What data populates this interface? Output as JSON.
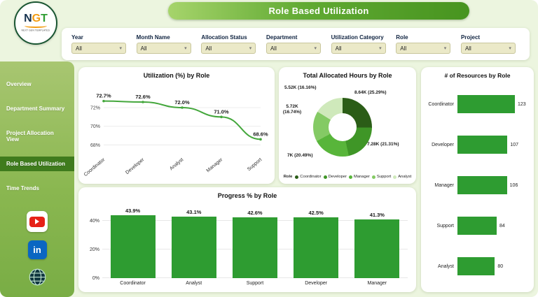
{
  "logo": {
    "letters": [
      "N",
      "G",
      "T"
    ],
    "subtext": "NEXT GEN TEMPLATES"
  },
  "header": {
    "title": "Role Based Utilization"
  },
  "icons": {
    "linkedin_text": "in"
  },
  "filters": {
    "items": [
      {
        "label": "Year",
        "value": "All"
      },
      {
        "label": "Month Name",
        "value": "All"
      },
      {
        "label": "Allocation Status",
        "value": "All"
      },
      {
        "label": "Department",
        "value": "All"
      },
      {
        "label": "Utilization Category",
        "value": "All"
      },
      {
        "label": "Role",
        "value": "All"
      },
      {
        "label": "Project",
        "value": "All"
      }
    ]
  },
  "sidebar": {
    "items": [
      {
        "label": "Overview",
        "active": false
      },
      {
        "label": "Department Summary",
        "active": false
      },
      {
        "label": "Project Allocation View",
        "active": false
      },
      {
        "label": "Role Based Utilization",
        "active": true
      },
      {
        "label": "Time Trends",
        "active": false
      }
    ],
    "social": [
      "youtube",
      "linkedin",
      "website"
    ]
  },
  "colors": {
    "bar_green": "#2e9c31",
    "line_green": "#44a73c",
    "sidebar_active": "#3f7b1d",
    "banner_green": "#61aa33"
  },
  "chart_data": [
    {
      "type": "line",
      "title": "Utilization (%) by Role",
      "categories": [
        "Coordinator",
        "Developer",
        "Analyst",
        "Manager",
        "Support"
      ],
      "values": [
        72.7,
        72.6,
        72.0,
        71.0,
        68.6
      ],
      "labels": [
        "72.7%",
        "72.6%",
        "72.0%",
        "71.0%",
        "68.6%"
      ],
      "yticks": [
        68,
        70,
        72
      ],
      "ytick_labels": [
        "68%",
        "70%",
        "72%"
      ],
      "ylim": [
        67.2,
        73.8
      ],
      "line_color": "#44a73c"
    },
    {
      "type": "pie",
      "title": "Total Allocated Hours by Role",
      "legend_title": "Role",
      "series": [
        {
          "name": "Coordinator",
          "label": "8.64K (25.29%)",
          "pct": 25.29,
          "color": "#2b5d17"
        },
        {
          "name": "Developer",
          "label": "7.28K (21.31%)",
          "pct": 21.31,
          "color": "#3f9627"
        },
        {
          "name": "Manager",
          "label": "7K (20.49%)",
          "pct": 20.49,
          "color": "#58b53a"
        },
        {
          "name": "Support",
          "label": "5.72K (16.74%)",
          "pct": 16.74,
          "color": "#84ca64"
        },
        {
          "name": "Analyst",
          "label": "5.52K (16.16%)",
          "pct": 16.16,
          "color": "#cfe9bb"
        }
      ]
    },
    {
      "type": "bar",
      "title": "Progress % by Role",
      "categories": [
        "Coordinator",
        "Analyst",
        "Support",
        "Developer",
        "Manager"
      ],
      "values": [
        43.9,
        43.1,
        42.6,
        42.5,
        41.3
      ],
      "labels": [
        "43.9%",
        "43.1%",
        "42.6%",
        "42.5%",
        "41.3%"
      ],
      "yticks": [
        0,
        20,
        40
      ],
      "ytick_labels": [
        "0%",
        "20%",
        "40%"
      ],
      "scale_max": 47,
      "bar_color": "#2e9c31"
    },
    {
      "type": "bar-horizontal",
      "title": "# of Resources by Role",
      "categories": [
        "Coordinator",
        "Developer",
        "Manager",
        "Support",
        "Analyst"
      ],
      "values": [
        123,
        107,
        106,
        84,
        80
      ],
      "max_value": 123,
      "bar_color": "#2e9c31"
    }
  ]
}
